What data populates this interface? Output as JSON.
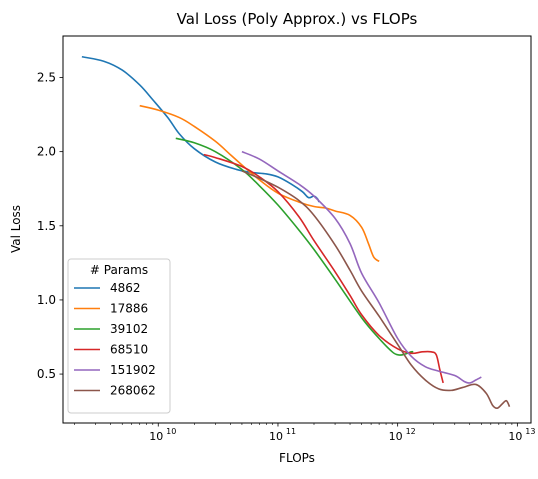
{
  "chart_data": {
    "type": "line",
    "title": "Val Loss (Poly Approx.) vs FLOPs",
    "xlabel": "FLOPs",
    "ylabel": "Val Loss",
    "xscale": "log",
    "xlim": [
      1600000000.0,
      13000000000000.0
    ],
    "ylim": [
      0.17,
      2.78
    ],
    "x_ticks": [
      {
        "value": 10000000000.0,
        "base": "10",
        "exp": "10"
      },
      {
        "value": 100000000000.0,
        "base": "10",
        "exp": "11"
      },
      {
        "value": 1000000000000.0,
        "base": "10",
        "exp": "12"
      },
      {
        "value": 10000000000000.0,
        "base": "10",
        "exp": "13"
      }
    ],
    "y_ticks": [
      {
        "value": 0.5,
        "label": "0.5"
      },
      {
        "value": 1.0,
        "label": "1.0"
      },
      {
        "value": 1.5,
        "label": "1.5"
      },
      {
        "value": 2.0,
        "label": "2.0"
      },
      {
        "value": 2.5,
        "label": "2.5"
      }
    ],
    "grid": false,
    "legend": {
      "title": "# Params",
      "placement": "lower-left"
    },
    "series": [
      {
        "name": "4862",
        "color": "#1f77b4",
        "points": [
          [
            2300000000.0,
            2.64
          ],
          [
            3500000000.0,
            2.61
          ],
          [
            5000000000.0,
            2.55
          ],
          [
            7000000000.0,
            2.45
          ],
          [
            9000000000.0,
            2.35
          ],
          [
            12000000000.0,
            2.23
          ],
          [
            15000000000.0,
            2.12
          ],
          [
            20000000000.0,
            2.02
          ],
          [
            30000000000.0,
            1.93
          ],
          [
            45000000000.0,
            1.88
          ],
          [
            60000000000.0,
            1.86
          ],
          [
            80000000000.0,
            1.85
          ],
          [
            100000000000.0,
            1.83
          ],
          [
            130000000000.0,
            1.78
          ],
          [
            160000000000.0,
            1.73
          ],
          [
            180000000000.0,
            1.69
          ],
          [
            200000000000.0,
            1.7
          ],
          [
            215000000000.0,
            1.68
          ],
          [
            220000000000.0,
            1.66
          ]
        ]
      },
      {
        "name": "17886",
        "color": "#ff7f0e",
        "points": [
          [
            7000000000.0,
            2.31
          ],
          [
            10000000000.0,
            2.28
          ],
          [
            15000000000.0,
            2.23
          ],
          [
            20000000000.0,
            2.17
          ],
          [
            30000000000.0,
            2.07
          ],
          [
            40000000000.0,
            1.98
          ],
          [
            50000000000.0,
            1.91
          ],
          [
            70000000000.0,
            1.81
          ],
          [
            100000000000.0,
            1.72
          ],
          [
            150000000000.0,
            1.66
          ],
          [
            200000000000.0,
            1.63
          ],
          [
            250000000000.0,
            1.62
          ],
          [
            300000000000.0,
            1.6
          ],
          [
            400000000000.0,
            1.57
          ],
          [
            500000000000.0,
            1.49
          ],
          [
            570000000000.0,
            1.38
          ],
          [
            630000000000.0,
            1.29
          ],
          [
            700000000000.0,
            1.26
          ]
        ]
      },
      {
        "name": "39102",
        "color": "#2ca02c",
        "points": [
          [
            14000000000.0,
            2.09
          ],
          [
            20000000000.0,
            2.06
          ],
          [
            30000000000.0,
            2.0
          ],
          [
            50000000000.0,
            1.88
          ],
          [
            70000000000.0,
            1.77
          ],
          [
            100000000000.0,
            1.64
          ],
          [
            150000000000.0,
            1.47
          ],
          [
            200000000000.0,
            1.34
          ],
          [
            300000000000.0,
            1.14
          ],
          [
            500000000000.0,
            0.88
          ],
          [
            700000000000.0,
            0.74
          ],
          [
            900000000000.0,
            0.65
          ],
          [
            1000000000000.0,
            0.63
          ],
          [
            1100000000000.0,
            0.63
          ],
          [
            1200000000000.0,
            0.64
          ],
          [
            1300000000000.0,
            0.65
          ],
          [
            1350000000000.0,
            0.65
          ]
        ]
      },
      {
        "name": "68510",
        "color": "#d62728",
        "points": [
          [
            24000000000.0,
            1.98
          ],
          [
            30000000000.0,
            1.96
          ],
          [
            50000000000.0,
            1.9
          ],
          [
            70000000000.0,
            1.83
          ],
          [
            100000000000.0,
            1.73
          ],
          [
            150000000000.0,
            1.56
          ],
          [
            200000000000.0,
            1.4
          ],
          [
            300000000000.0,
            1.19
          ],
          [
            400000000000.0,
            1.03
          ],
          [
            500000000000.0,
            0.9
          ],
          [
            700000000000.0,
            0.76
          ],
          [
            1000000000000.0,
            0.67
          ],
          [
            1300000000000.0,
            0.64
          ],
          [
            1600000000000.0,
            0.65
          ],
          [
            1900000000000.0,
            0.65
          ],
          [
            2100000000000.0,
            0.63
          ],
          [
            2250000000000.0,
            0.53
          ],
          [
            2400000000000.0,
            0.44
          ]
        ]
      },
      {
        "name": "151902",
        "color": "#9467bd",
        "points": [
          [
            50000000000.0,
            2.0
          ],
          [
            70000000000.0,
            1.95
          ],
          [
            100000000000.0,
            1.87
          ],
          [
            150000000000.0,
            1.78
          ],
          [
            200000000000.0,
            1.7
          ],
          [
            300000000000.0,
            1.55
          ],
          [
            400000000000.0,
            1.38
          ],
          [
            500000000000.0,
            1.18
          ],
          [
            700000000000.0,
            0.98
          ],
          [
            1000000000000.0,
            0.74
          ],
          [
            1300000000000.0,
            0.62
          ],
          [
            1700000000000.0,
            0.55
          ],
          [
            2200000000000.0,
            0.52
          ],
          [
            3000000000000.0,
            0.49
          ],
          [
            3600000000000.0,
            0.45
          ],
          [
            4000000000000.0,
            0.44
          ],
          [
            4500000000000.0,
            0.46
          ],
          [
            5000000000000.0,
            0.48
          ]
        ]
      },
      {
        "name": "268062",
        "color": "#8c564b",
        "points": [
          [
            50000000000.0,
            1.87
          ],
          [
            70000000000.0,
            1.82
          ],
          [
            100000000000.0,
            1.76
          ],
          [
            150000000000.0,
            1.67
          ],
          [
            200000000000.0,
            1.57
          ],
          [
            300000000000.0,
            1.37
          ],
          [
            400000000000.0,
            1.2
          ],
          [
            500000000000.0,
            1.06
          ],
          [
            700000000000.0,
            0.89
          ],
          [
            1000000000000.0,
            0.7
          ],
          [
            1300000000000.0,
            0.56
          ],
          [
            1700000000000.0,
            0.46
          ],
          [
            2200000000000.0,
            0.4
          ],
          [
            2800000000000.0,
            0.39
          ],
          [
            3500000000000.0,
            0.41
          ],
          [
            4500000000000.0,
            0.43
          ],
          [
            5500000000000.0,
            0.37
          ],
          [
            6200000000000.0,
            0.29
          ],
          [
            6800000000000.0,
            0.27
          ],
          [
            7500000000000.0,
            0.3
          ],
          [
            8100000000000.0,
            0.32
          ],
          [
            8600000000000.0,
            0.28
          ]
        ]
      }
    ]
  }
}
